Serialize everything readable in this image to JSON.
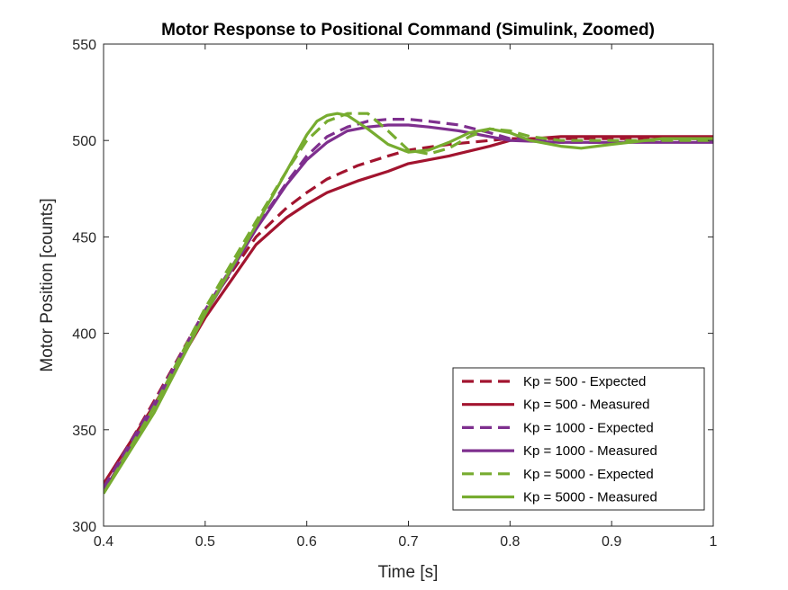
{
  "chart_data": {
    "type": "line",
    "title": "Motor Response to Positional Command (Simulink, Zoomed)",
    "xlabel": "Time [s]",
    "ylabel": "Motor Position [counts]",
    "xlim": [
      0.4,
      1.0
    ],
    "ylim": [
      300,
      550
    ],
    "xticks": [
      0.4,
      0.5,
      0.6,
      0.7,
      0.8,
      0.9,
      1.0
    ],
    "xtick_labels": [
      "0.4",
      "0.5",
      "0.6",
      "0.7",
      "0.8",
      "0.9",
      "1"
    ],
    "yticks": [
      300,
      350,
      400,
      450,
      500,
      550
    ],
    "ytick_labels": [
      "300",
      "350",
      "400",
      "450",
      "500",
      "550"
    ],
    "grid": false,
    "legend_position": "bottom-right",
    "series": [
      {
        "name": "Kp = 500 - Expected",
        "color": "#A2142F",
        "style": "dashed",
        "x": [
          0.4,
          0.45,
          0.5,
          0.55,
          0.58,
          0.6,
          0.62,
          0.65,
          0.68,
          0.7,
          0.74,
          0.78,
          0.8,
          0.85,
          0.9,
          1.0
        ],
        "y": [
          320,
          365,
          412,
          450,
          465,
          473,
          480,
          487,
          492,
          495,
          498,
          500,
          501,
          501,
          501,
          501
        ]
      },
      {
        "name": "Kp = 500 - Measured",
        "color": "#A2142F",
        "style": "solid",
        "x": [
          0.4,
          0.45,
          0.5,
          0.55,
          0.58,
          0.6,
          0.62,
          0.65,
          0.68,
          0.7,
          0.74,
          0.78,
          0.8,
          0.85,
          0.9,
          1.0
        ],
        "y": [
          322,
          363,
          408,
          446,
          460,
          467,
          473,
          479,
          484,
          488,
          492,
          497,
          500,
          502,
          502,
          502
        ]
      },
      {
        "name": "Kp = 1000 - Expected",
        "color": "#7E2F8E",
        "style": "dashed",
        "x": [
          0.4,
          0.45,
          0.5,
          0.55,
          0.58,
          0.6,
          0.62,
          0.64,
          0.66,
          0.68,
          0.7,
          0.72,
          0.75,
          0.78,
          0.8,
          0.85,
          0.9,
          0.95,
          1.0
        ],
        "y": [
          320,
          364,
          412,
          455,
          478,
          492,
          502,
          507,
          510,
          511,
          511,
          510,
          508,
          504,
          501,
          499,
          499,
          500,
          500
        ]
      },
      {
        "name": "Kp = 1000 - Measured",
        "color": "#7E2F8E",
        "style": "solid",
        "x": [
          0.4,
          0.45,
          0.5,
          0.55,
          0.58,
          0.6,
          0.62,
          0.64,
          0.66,
          0.68,
          0.7,
          0.72,
          0.75,
          0.78,
          0.8,
          0.85,
          0.9,
          0.95,
          1.0
        ],
        "y": [
          318,
          362,
          410,
          454,
          477,
          490,
          499,
          505,
          507,
          508,
          508,
          507,
          505,
          502,
          500,
          499,
          499,
          499,
          499
        ]
      },
      {
        "name": "Kp = 5000 - Expected",
        "color": "#77AC30",
        "style": "dashed",
        "x": [
          0.4,
          0.45,
          0.5,
          0.55,
          0.58,
          0.6,
          0.62,
          0.64,
          0.66,
          0.68,
          0.7,
          0.72,
          0.74,
          0.76,
          0.78,
          0.8,
          0.82,
          0.85,
          0.9,
          0.95,
          1.0
        ],
        "y": [
          317,
          362,
          413,
          458,
          484,
          500,
          510,
          514,
          514,
          505,
          495,
          493,
          496,
          502,
          506,
          505,
          502,
          500,
          500,
          500,
          500
        ]
      },
      {
        "name": "Kp = 5000 - Measured",
        "color": "#77AC30",
        "style": "solid",
        "x": [
          0.4,
          0.45,
          0.5,
          0.55,
          0.58,
          0.6,
          0.61,
          0.62,
          0.63,
          0.64,
          0.66,
          0.68,
          0.7,
          0.72,
          0.74,
          0.76,
          0.78,
          0.8,
          0.82,
          0.85,
          0.87,
          0.9,
          0.95,
          1.0
        ],
        "y": [
          317,
          359,
          410,
          456,
          484,
          503,
          510,
          513,
          514,
          513,
          506,
          498,
          494,
          495,
          499,
          504,
          506,
          504,
          500,
          497,
          496,
          498,
          501,
          501
        ]
      }
    ]
  }
}
